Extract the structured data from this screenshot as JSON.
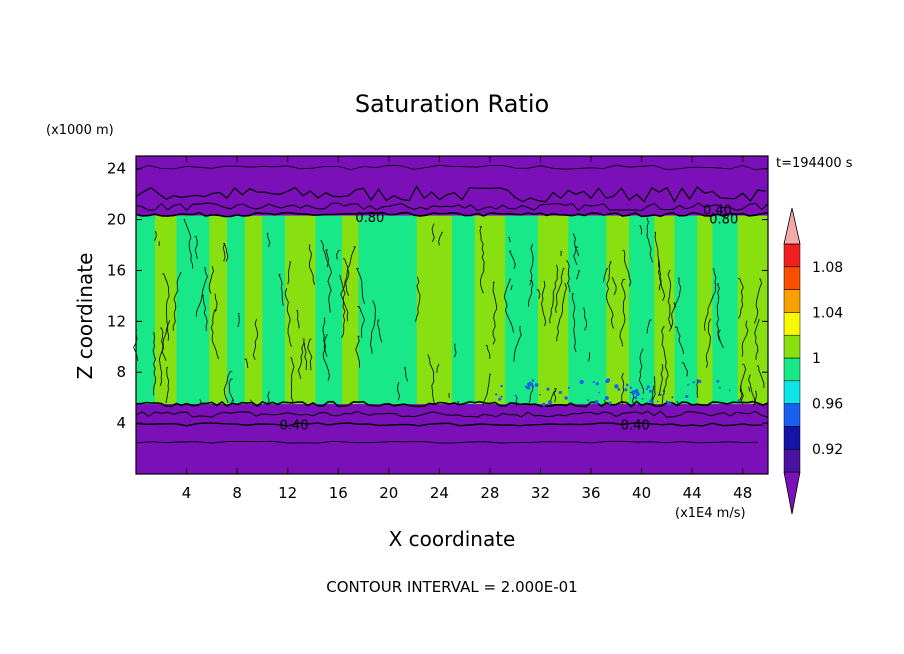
{
  "chart_data": {
    "type": "heatmap",
    "title": "Saturation Ratio",
    "xlabel": "X coordinate",
    "ylabel": "Z coordinate",
    "x_unit": "(x1E4 m/s)",
    "y_unit": "(x1000 m)",
    "time_label": "t=194400 s",
    "footer": "CONTOUR INTERVAL = 2.000E-01",
    "xlim": [
      0,
      50
    ],
    "ylim": [
      0,
      25
    ],
    "x_ticks": [
      4,
      8,
      12,
      16,
      20,
      24,
      28,
      32,
      36,
      40,
      44,
      48
    ],
    "y_ticks": [
      4,
      8,
      12,
      16,
      20,
      24
    ],
    "contour_labels": [
      {
        "text": "0.40",
        "x": 46,
        "z": 20.8
      },
      {
        "text": "0.80",
        "x": 18.5,
        "z": 20.2
      },
      {
        "text": "0.80",
        "x": 46.5,
        "z": 20.1
      },
      {
        "text": "0.40",
        "x": 12.5,
        "z": 3.9
      },
      {
        "text": "0.40",
        "x": 39.5,
        "z": 3.9
      }
    ],
    "colorbar": {
      "labels": [
        "1.08",
        "1.04",
        "1",
        "0.96",
        "0.92"
      ],
      "levels": [
        {
          "min": null,
          "max": 0.9,
          "color": "#7b10b8"
        },
        {
          "min": 0.9,
          "max": 0.92,
          "color": "#4a14a0"
        },
        {
          "min": 0.92,
          "max": 0.94,
          "color": "#1414a8"
        },
        {
          "min": 0.94,
          "max": 0.96,
          "color": "#1a60f0"
        },
        {
          "min": 0.96,
          "max": 0.98,
          "color": "#10e4e8"
        },
        {
          "min": 0.98,
          "max": 1.0,
          "color": "#18e888"
        },
        {
          "min": 1.0,
          "max": 1.02,
          "color": "#88e010"
        },
        {
          "min": 1.02,
          "max": 1.04,
          "color": "#f8f800"
        },
        {
          "min": 1.04,
          "max": 1.06,
          "color": "#f8a000"
        },
        {
          "min": 1.06,
          "max": 1.08,
          "color": "#f85000"
        },
        {
          "min": 1.08,
          "max": 1.1,
          "color": "#f02020"
        },
        {
          "min": 1.1,
          "max": null,
          "color": "#f4a8a8"
        }
      ]
    },
    "field": {
      "upper_dry_layer": {
        "z_min": 20.3,
        "z_max": 25,
        "color": "#7b10b8"
      },
      "lower_dry_layer": {
        "z_min": 0,
        "z_max": 5.5,
        "color": "#7b10b8"
      },
      "cloud_layer": {
        "z_min": 5.5,
        "z_max": 20.3
      },
      "bands": [
        {
          "x0": 0,
          "x1": 1.5,
          "v": 0.99
        },
        {
          "x0": 1.5,
          "x1": 3.2,
          "v": 1.01
        },
        {
          "x0": 3.2,
          "x1": 5.8,
          "v": 0.99
        },
        {
          "x0": 5.8,
          "x1": 7.2,
          "v": 1.01
        },
        {
          "x0": 7.2,
          "x1": 8.6,
          "v": 0.99
        },
        {
          "x0": 8.6,
          "x1": 10.0,
          "v": 1.01
        },
        {
          "x0": 10.0,
          "x1": 11.8,
          "v": 0.99
        },
        {
          "x0": 11.8,
          "x1": 14.2,
          "v": 1.01
        },
        {
          "x0": 14.2,
          "x1": 16.3,
          "v": 0.99
        },
        {
          "x0": 16.3,
          "x1": 17.6,
          "v": 1.01
        },
        {
          "x0": 17.6,
          "x1": 22.2,
          "v": 0.99
        },
        {
          "x0": 22.2,
          "x1": 25.0,
          "v": 1.01
        },
        {
          "x0": 25.0,
          "x1": 26.8,
          "v": 0.99
        },
        {
          "x0": 26.8,
          "x1": 29.2,
          "v": 1.01
        },
        {
          "x0": 29.2,
          "x1": 31.8,
          "v": 0.99
        },
        {
          "x0": 31.8,
          "x1": 34.2,
          "v": 1.01
        },
        {
          "x0": 34.2,
          "x1": 37.2,
          "v": 0.99
        },
        {
          "x0": 37.2,
          "x1": 39.0,
          "v": 1.01
        },
        {
          "x0": 39.0,
          "x1": 41.0,
          "v": 0.99
        },
        {
          "x0": 41.0,
          "x1": 42.6,
          "v": 1.01
        },
        {
          "x0": 42.6,
          "x1": 44.4,
          "v": 0.99
        },
        {
          "x0": 44.4,
          "x1": 45.6,
          "v": 1.01
        },
        {
          "x0": 45.6,
          "x1": 47.6,
          "v": 0.99
        },
        {
          "x0": 47.6,
          "x1": 50.0,
          "v": 1.01
        }
      ]
    }
  }
}
